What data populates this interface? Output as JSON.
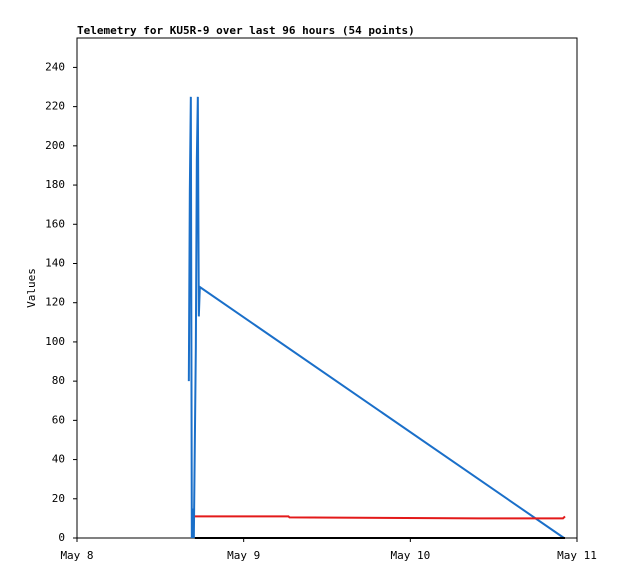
{
  "chart_data": {
    "type": "line",
    "title": "Telemetry for KU5R-9 over last 96 hours (54 points)",
    "y_label": "Values",
    "xlim": [
      0,
      3
    ],
    "xticks": [
      {
        "value": 0,
        "label": "May 8"
      },
      {
        "value": 1,
        "label": "May 9"
      },
      {
        "value": 2,
        "label": "May 10"
      },
      {
        "value": 3,
        "label": "May 11"
      }
    ],
    "ylim": [
      0,
      255
    ],
    "yticks": [
      0,
      20,
      40,
      60,
      80,
      100,
      120,
      140,
      160,
      180,
      200,
      220,
      240
    ],
    "series": [
      {
        "color": "#1a6fc9",
        "x": [
          0.671,
          0.677,
          0.683,
          0.689,
          0.695,
          0.701,
          0.713,
          0.719,
          0.725,
          0.731,
          0.737,
          2.922
        ],
        "values": [
          80,
          177,
          225,
          0,
          15,
          0,
          97,
          193,
          225,
          113,
          128,
          0
        ]
      },
      {
        "color": "#e31a1a",
        "x": [
          0.707,
          1.269,
          1.275,
          2.41,
          2.916,
          2.928
        ],
        "values": [
          11,
          11,
          10.5,
          10,
          10,
          11
        ]
      },
      {
        "color": "#000000",
        "x": [
          0.707,
          2.928
        ],
        "values": [
          0,
          0
        ]
      }
    ]
  }
}
